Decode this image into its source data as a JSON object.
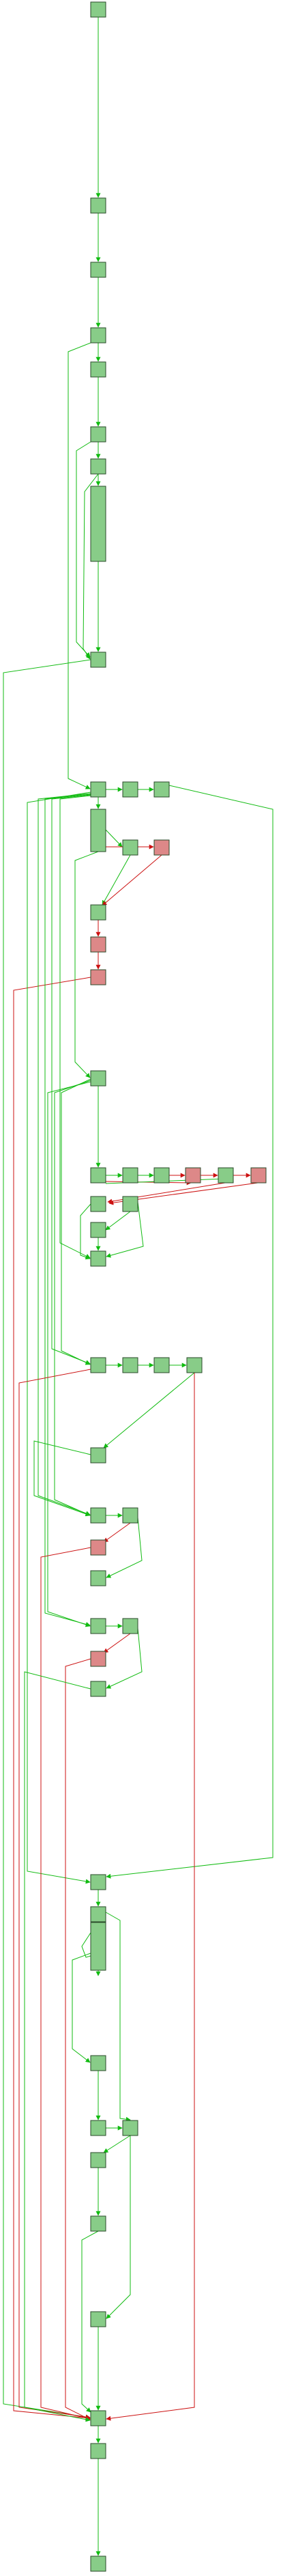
{
  "title": "",
  "colors": {
    "node_ok": "#88cc88",
    "node_bad": "#dd8888",
    "edge_ok": "#11bb11",
    "edge_bad": "#cc1111",
    "node_border": "#2a4a2a"
  },
  "legend": [],
  "node_kinds": [
    "ok",
    "bad"
  ],
  "edge_kinds": [
    "ok",
    "bad"
  ]
}
